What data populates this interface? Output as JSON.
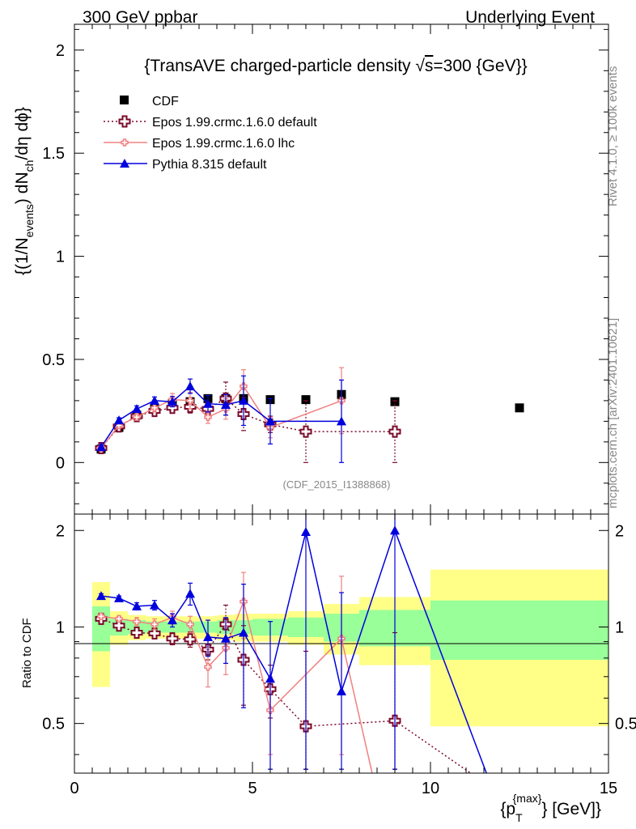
{
  "header": {
    "left": "300 GeV ppbar",
    "right": "Underlying Event"
  },
  "side_text": {
    "rivet": "Rivet 4.1.0, ≥ 100k events",
    "mcplots": "mcplots.cern.ch [arXiv:2401.10621]"
  },
  "watermark": "(CDF_2015_I1388868)",
  "legend": [
    {
      "key": "cdf",
      "label": "CDF"
    },
    {
      "key": "epos_def",
      "label": "Epos 1.99.crmc.1.6.0 default"
    },
    {
      "key": "epos_lhc",
      "label": "Epos 1.99.crmc.1.6.0 lhc"
    },
    {
      "key": "pythia",
      "label": "Pythia 8.315 default"
    }
  ],
  "colors": {
    "cdf": "#000000",
    "epos_def": "#7a0a2a",
    "epos_lhc": "#f08080",
    "pythia": "#0000dd",
    "band_yellow": "#ffff88",
    "band_green": "#99ff99"
  },
  "chart_data": [
    {
      "type": "line",
      "title": "{TransAVE charged-particle density √s=300 {GeV}}",
      "title_parts": {
        "before": "{TransAVE charged-particle density ",
        "sqrt": "√",
        "s": "s",
        "after": "=300 {GeV}}"
      },
      "ylabel_parts": {
        "a": "{(1/N",
        "a_sub": "events",
        "b": ") dN",
        "b_sub": "ch",
        "c": "/dη dϕ}"
      },
      "xlim": [
        0,
        15
      ],
      "ylim": [
        -0.25,
        2.125
      ],
      "y_ticks": [
        0,
        0.5,
        1,
        1.5,
        2
      ],
      "y_tick_labels": [
        "0",
        "0.5",
        "1",
        "1.5",
        "2"
      ],
      "series": [
        {
          "name": "CDF",
          "key": "cdf",
          "x": [
            0.75,
            1.25,
            1.75,
            2.25,
            2.75,
            3.25,
            3.75,
            4.25,
            4.75,
            5.5,
            6.5,
            7.5,
            9.0,
            12.5
          ],
          "y": [
            0.065,
            0.17,
            0.23,
            0.26,
            0.285,
            0.295,
            0.31,
            0.31,
            0.31,
            0.305,
            0.305,
            0.33,
            0.295,
            0.265
          ]
        },
        {
          "name": "Epos 1.99.crmc.1.6.0 default",
          "key": "epos_def",
          "x": [
            0.75,
            1.25,
            1.75,
            2.25,
            2.75,
            3.25,
            3.75,
            4.25,
            4.75,
            5.5,
            6.5,
            9.0
          ],
          "y": [
            0.07,
            0.175,
            0.225,
            0.25,
            0.265,
            0.27,
            0.26,
            0.31,
            0.235,
            0.185,
            0.15,
            0.15
          ],
          "err": [
            0.01,
            0.01,
            0.012,
            0.015,
            0.02,
            0.03,
            0.03,
            0.08,
            0.08,
            0.04,
            0.15,
            0.15
          ]
        },
        {
          "name": "Epos 1.99.crmc.1.6.0 lhc",
          "key": "epos_lhc",
          "x": [
            0.75,
            1.25,
            1.75,
            2.25,
            2.75,
            3.25,
            3.75,
            4.25,
            4.75,
            5.5,
            7.5
          ],
          "y": [
            0.07,
            0.18,
            0.22,
            0.265,
            0.305,
            0.3,
            0.22,
            0.26,
            0.37,
            0.17,
            0.3
          ],
          "err": [
            0.01,
            0.012,
            0.015,
            0.02,
            0.03,
            0.04,
            0.03,
            0.05,
            0.08,
            0.05,
            0.16
          ]
        },
        {
          "name": "Pythia 8.315 default",
          "key": "pythia",
          "x": [
            0.75,
            1.25,
            1.75,
            2.25,
            2.75,
            3.25,
            3.75,
            4.25,
            4.75,
            5.5,
            7.5
          ],
          "y": [
            0.075,
            0.205,
            0.26,
            0.3,
            0.295,
            0.37,
            0.285,
            0.28,
            0.3,
            0.2,
            0.2
          ],
          "err": [
            0.01,
            0.012,
            0.015,
            0.018,
            0.025,
            0.035,
            0.04,
            0.05,
            0.12,
            0.11,
            0.2
          ]
        }
      ]
    },
    {
      "type": "line",
      "title": "Ratio to CDF",
      "ylabel": "Ratio to CDF",
      "xlabel_parts": {
        "a": "{p",
        "sub": "T",
        "sup": "{max}",
        "b": "} [GeV]}"
      },
      "xlim": [
        0,
        15
      ],
      "ylim": [
        0.35,
        2.25
      ],
      "x_ticks": [
        0,
        5,
        10,
        15
      ],
      "x_tick_labels": [
        "0",
        "5",
        "10",
        "15"
      ],
      "y_ticks": [
        0.5,
        1,
        2
      ],
      "y_tick_labels": [
        "0.5",
        "1",
        "2"
      ],
      "bands": [
        {
          "x0": 0.5,
          "x1": 1.0,
          "y_lo": 0.65,
          "y_hi": 1.38,
          "g_lo": 0.84,
          "g_hi": 1.16
        },
        {
          "x0": 1.0,
          "x1": 1.5,
          "y_lo": 0.88,
          "y_hi": 1.12,
          "g_lo": 0.94,
          "g_hi": 1.06
        },
        {
          "x0": 1.5,
          "x1": 2.0,
          "y_lo": 0.91,
          "y_hi": 1.09,
          "g_lo": 0.95,
          "g_hi": 1.05
        },
        {
          "x0": 2.0,
          "x1": 2.5,
          "y_lo": 0.92,
          "y_hi": 1.08,
          "g_lo": 0.96,
          "g_hi": 1.04
        },
        {
          "x0": 2.5,
          "x1": 3.0,
          "y_lo": 0.92,
          "y_hi": 1.08,
          "g_lo": 0.96,
          "g_hi": 1.04
        },
        {
          "x0": 3.0,
          "x1": 3.5,
          "y_lo": 0.92,
          "y_hi": 1.08,
          "g_lo": 0.96,
          "g_hi": 1.04
        },
        {
          "x0": 3.5,
          "x1": 4.0,
          "y_lo": 0.92,
          "y_hi": 1.08,
          "g_lo": 0.96,
          "g_hi": 1.04
        },
        {
          "x0": 4.0,
          "x1": 4.5,
          "y_lo": 0.91,
          "y_hi": 1.09,
          "g_lo": 0.95,
          "g_hi": 1.05
        },
        {
          "x0": 4.5,
          "x1": 5.0,
          "y_lo": 0.9,
          "y_hi": 1.1,
          "g_lo": 0.95,
          "g_hi": 1.05
        },
        {
          "x0": 5.0,
          "x1": 6.0,
          "y_lo": 0.9,
          "y_hi": 1.1,
          "g_lo": 0.94,
          "g_hi": 1.06
        },
        {
          "x0": 6.0,
          "x1": 7.0,
          "y_lo": 0.88,
          "y_hi": 1.12,
          "g_lo": 0.93,
          "g_hi": 1.07
        },
        {
          "x0": 7.0,
          "x1": 8.0,
          "y_lo": 0.82,
          "y_hi": 1.18,
          "g_lo": 0.9,
          "g_hi": 1.1
        },
        {
          "x0": 8.0,
          "x1": 10.0,
          "y_lo": 0.76,
          "y_hi": 1.24,
          "g_lo": 0.87,
          "g_hi": 1.13
        },
        {
          "x0": 10.0,
          "x1": 15.0,
          "y_lo": 0.49,
          "y_hi": 1.51,
          "g_lo": 0.79,
          "g_hi": 1.21
        }
      ],
      "series": [
        {
          "name": "Epos 1.99.crmc.1.6.0 default",
          "key": "epos_def",
          "x": [
            0.75,
            1.25,
            1.75,
            2.25,
            2.75,
            3.25,
            3.75,
            4.25,
            4.75,
            5.5,
            6.5,
            9.0,
            12.0
          ],
          "y": [
            1.06,
            1.01,
            0.96,
            0.955,
            0.92,
            0.915,
            0.85,
            1.02,
            0.79,
            0.64,
            0.49,
            0.51,
            0.3
          ],
          "err": [
            0.02,
            0.02,
            0.02,
            0.03,
            0.04,
            0.05,
            0.06,
            0.15,
            0.22,
            0.12,
            0.35,
            0.45,
            0
          ]
        },
        {
          "name": "Epos 1.99.crmc.1.6.0 lhc",
          "key": "epos_lhc",
          "x": [
            0.75,
            1.25,
            1.75,
            2.25,
            2.75,
            3.25,
            3.75,
            4.25,
            4.75,
            5.5,
            7.5,
            8.5
          ],
          "y": [
            1.08,
            1.06,
            1.04,
            1.02,
            1.07,
            1.02,
            0.75,
            0.86,
            1.2,
            0.55,
            0.92,
            0.3
          ],
          "err": [
            0.02,
            0.02,
            0.03,
            0.04,
            0.05,
            0.06,
            0.1,
            0.15,
            0.28,
            0.15,
            0.52,
            0
          ]
        },
        {
          "name": "Pythia 8.315 default",
          "key": "pythia",
          "x": [
            0.75,
            1.25,
            1.75,
            2.25,
            2.75,
            3.25,
            3.75,
            4.25,
            4.75,
            5.5,
            6.5,
            7.5,
            9.0,
            11.8
          ],
          "y": [
            1.25,
            1.23,
            1.16,
            1.17,
            1.05,
            1.27,
            0.93,
            0.92,
            0.96,
            0.69,
            1.98,
            0.63,
            2.0,
            0.3
          ],
          "err": [
            0.02,
            0.02,
            0.03,
            0.04,
            0.05,
            0.1,
            0.12,
            0.15,
            0.4,
            0.35,
            1.7,
            0.65,
            1.7,
            0
          ]
        }
      ]
    }
  ]
}
